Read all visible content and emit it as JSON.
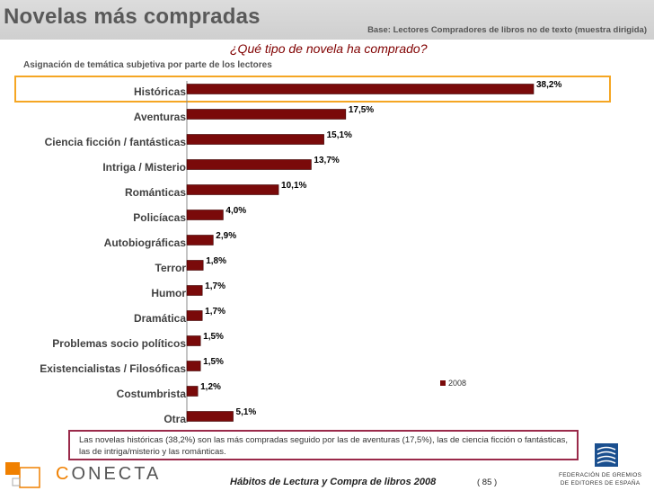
{
  "header": {
    "title": "Novelas más compradas",
    "base": "Base: Lectores Compradores de libros no de texto (muestra dirigida)"
  },
  "question": "¿Qué tipo de novela ha comprado?",
  "subtitle": "Asignación de temática subjetiva por parte de los lectores",
  "chart_data": {
    "type": "bar",
    "orientation": "horizontal",
    "title": "¿Qué tipo de novela ha comprado?",
    "categories": [
      "Históricas",
      "Aventuras",
      "Ciencia  ficción / fantásticas",
      "Intriga / Misterio",
      "Románticas",
      "Policíacas",
      "Autobiográficas",
      "Terror",
      "Humor",
      "Dramática",
      "Problemas socio políticos",
      "Existencialistas / Filosóficas",
      "Costumbrista",
      "Otra"
    ],
    "series": [
      {
        "name": "2008",
        "values": [
          38.2,
          17.5,
          15.1,
          13.7,
          10.1,
          4.0,
          2.9,
          1.8,
          1.7,
          1.7,
          1.5,
          1.5,
          1.2,
          5.1
        ]
      }
    ],
    "value_labels": [
      "38,2%",
      "17,5%",
      "15,1%",
      "13,7%",
      "10,1%",
      "4,0%",
      "2,9%",
      "1,8%",
      "1,7%",
      "1,7%",
      "1,5%",
      "1,5%",
      "1,2%",
      "5,1%"
    ],
    "xlim": [
      0,
      40
    ],
    "legend": "bottom-right",
    "bar_color": "#7a0a0a"
  },
  "legend": {
    "label": "2008"
  },
  "note": "Las novelas históricas (38,2%) son las más compradas seguido por las de aventuras (17,5%), las de ciencia ficción o fantásticas, las de intriga/misterio y las románticas.",
  "footer": {
    "logo": "CONECTA",
    "logo_first": "C",
    "logo_rest": "ONECTA",
    "report_title": "Hábitos de Lectura y Compra de libros 2008",
    "page": "( 85 )",
    "federation_line1": "FEDERACIÓN DE GREMIOS",
    "federation_line2": "DE EDITORES DE ESPAÑA"
  }
}
